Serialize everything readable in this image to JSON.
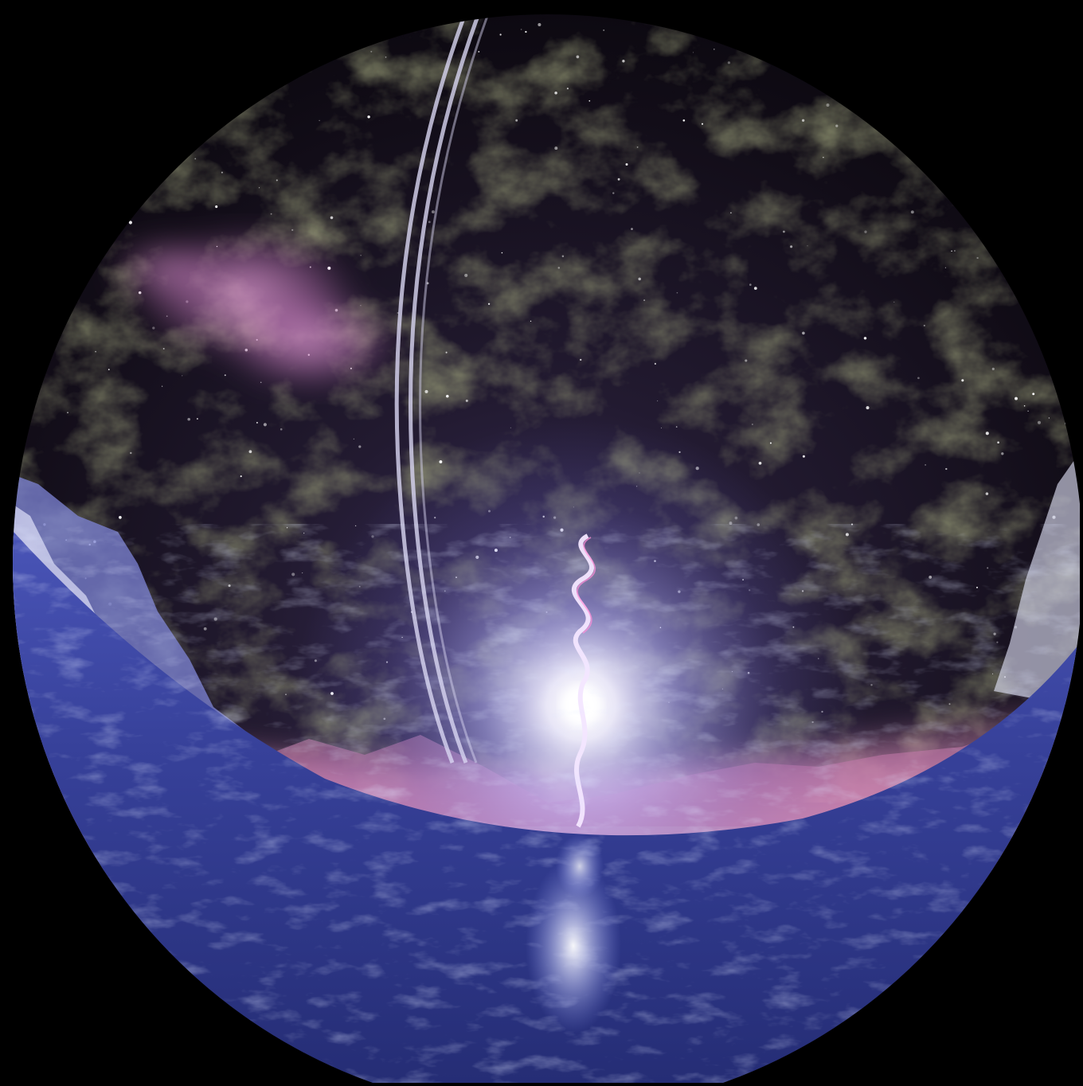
{
  "scene": {
    "subject": "fisheye-planetarium-dome",
    "colors": {
      "background": "#000000",
      "sky_top": "#050308",
      "sky_mid": "#1a1420",
      "nebula": "#3c3a22",
      "nebula_pink": "#d98acb",
      "horizon_glow": "#e89ac8",
      "sun": "#ffffff",
      "sun_halo": "#b9b8ff",
      "ocean": "#2f3a8f",
      "ocean_light": "#6a78d6",
      "ice": "#e8e9ff",
      "ring": "#d9d6f2"
    }
  }
}
